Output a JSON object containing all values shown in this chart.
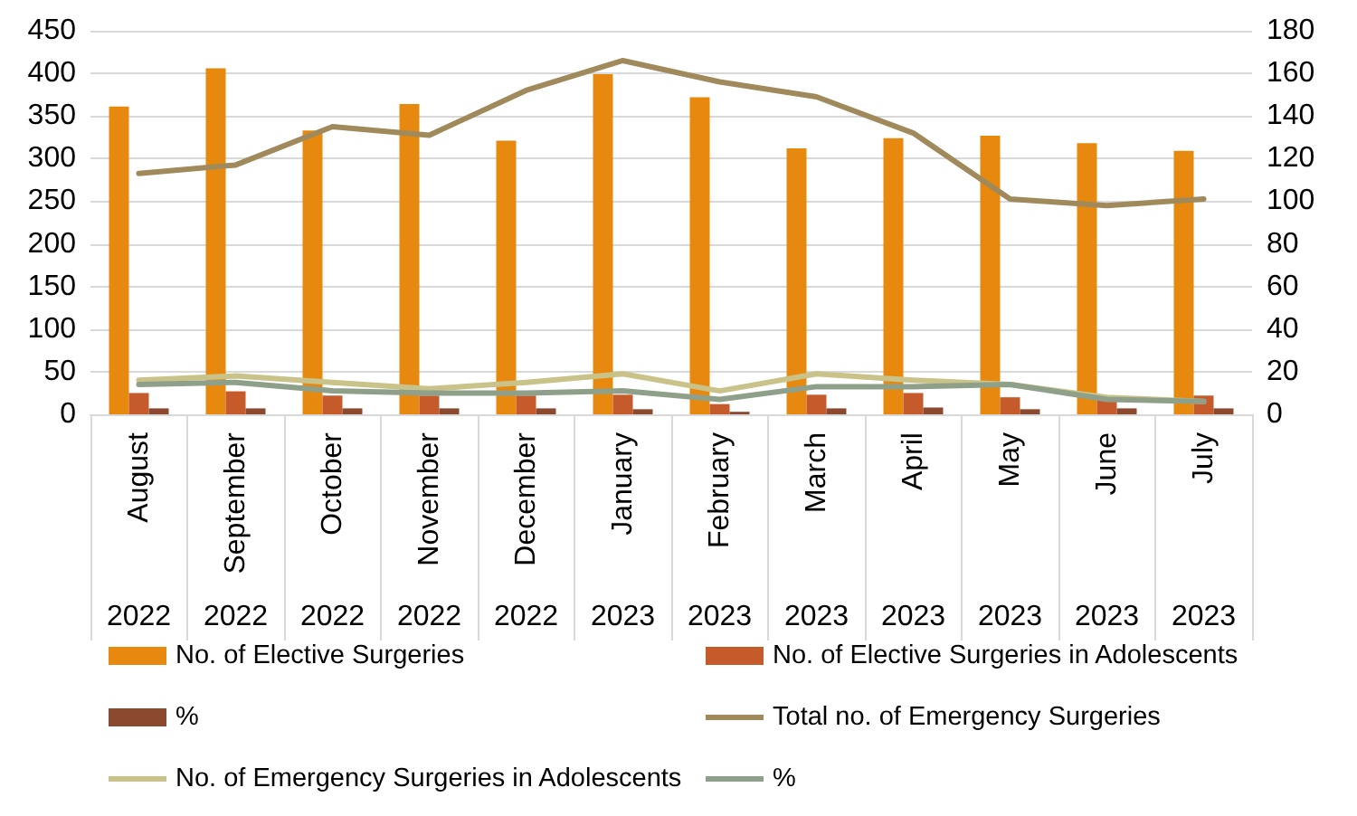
{
  "chart_data": {
    "type": "bar",
    "categories": [
      "August\n2022",
      "September\n2022",
      "October\n2022",
      "November\n2022",
      "December\n2022",
      "January\n2023",
      "February\n2023",
      "March\n2023",
      "April\n2023",
      "May\n2023",
      "June\n2023",
      "July\n2023"
    ],
    "series": [
      {
        "name": "No. of Elective Surgeries",
        "color": "#e8890f",
        "values": [
          361,
          406,
          333,
          364,
          321,
          399,
          372,
          312,
          324,
          327,
          318,
          309
        ]
      },
      {
        "name": "No. of Elective Surgeries in Adolescents",
        "type": "bar",
        "color": "#c55a2b",
        "values": [
          25,
          27,
          22,
          22,
          22,
          23,
          12,
          23,
          25,
          20,
          22,
          22
        ]
      },
      {
        "name": "%",
        "type": "bar",
        "color": "#8b4a2f",
        "values": [
          7,
          7,
          7,
          7,
          7,
          6,
          3,
          7,
          8,
          6,
          7,
          7
        ]
      },
      {
        "name": "Total no. of Emergency Surgeries",
        "type": "line",
        "axis": "y2",
        "color": "#a08a5c",
        "values": [
          113,
          117,
          135,
          131,
          152,
          166,
          156,
          149,
          132,
          101,
          98,
          101
        ]
      },
      {
        "name": "No. of Emergency Surgeries in Adolescents",
        "type": "line",
        "axis": "y2",
        "color": "#c9c38a",
        "values": [
          16,
          18,
          15,
          12,
          15,
          19,
          11,
          19,
          16,
          14,
          8,
          6
        ]
      },
      {
        "name": "%",
        "type": "line",
        "axis": "y2",
        "color": "#8fa08a",
        "values": [
          14,
          15,
          11,
          10,
          10,
          11,
          7,
          13,
          13,
          14,
          7,
          6
        ]
      }
    ],
    "ylim": [
      0,
      450
    ],
    "yticks": [
      0,
      50,
      100,
      150,
      200,
      250,
      300,
      350,
      400,
      450
    ],
    "y2lim": [
      0,
      180
    ],
    "y2ticks": [
      0,
      20,
      40,
      60,
      80,
      100,
      120,
      140,
      160,
      180
    ],
    "grid": "y",
    "legend": "bottom",
    "marker": "none",
    "line_style": "solid"
  }
}
